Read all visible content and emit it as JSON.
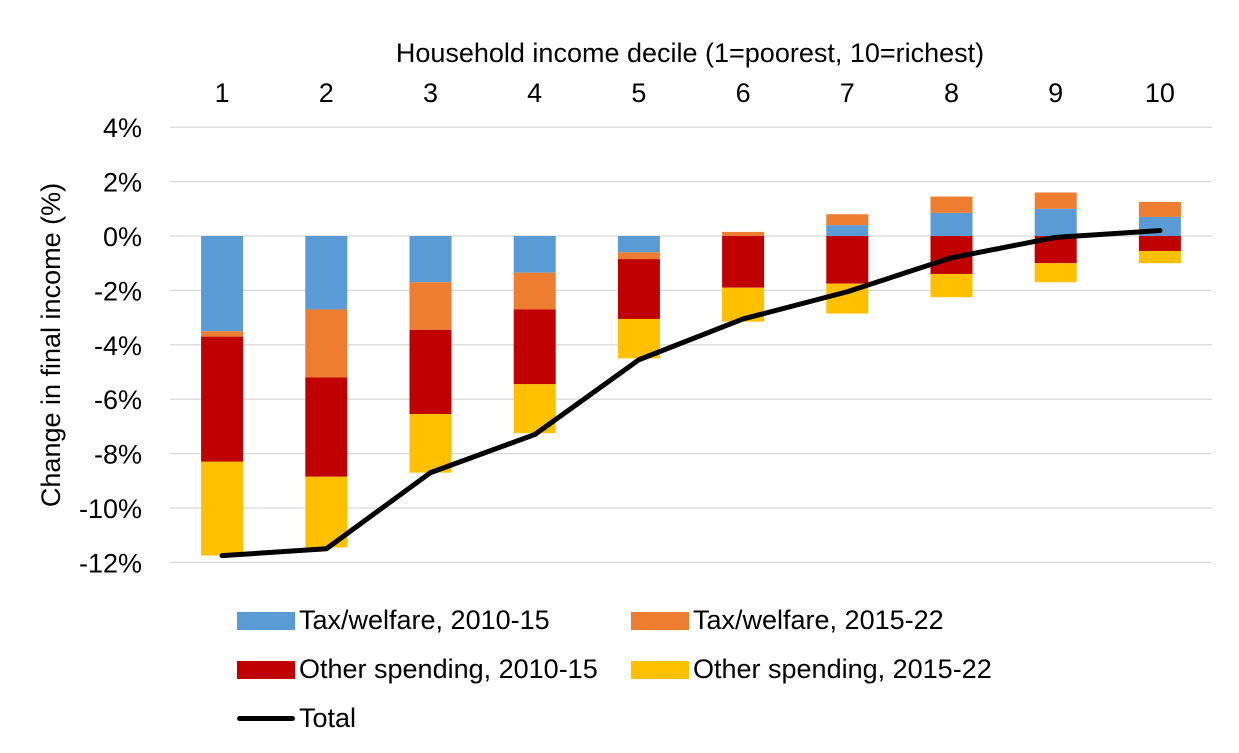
{
  "chart_data": {
    "type": "bar",
    "stacked": true,
    "title": "",
    "xlabel": "Household income decile (1=poorest, 10=richest)",
    "ylabel": "Change in final income (%)",
    "xaxis_position": "top",
    "categories": [
      "1",
      "2",
      "3",
      "4",
      "5",
      "6",
      "7",
      "8",
      "9",
      "10"
    ],
    "ylim": [
      -12,
      4
    ],
    "yticks": [
      4,
      2,
      0,
      -2,
      -4,
      -6,
      -8,
      -10,
      -12
    ],
    "ytick_labels": [
      "4%",
      "2%",
      "0%",
      "-2%",
      "-4%",
      "-6%",
      "-8%",
      "-10%",
      "-12%"
    ],
    "grid": true,
    "legend_position": "bottom",
    "series": [
      {
        "name": "Tax/welfare, 2010-15",
        "color": "#5b9bd5",
        "values": [
          -3.5,
          -2.7,
          -1.7,
          -1.35,
          -0.6,
          0.0,
          0.4,
          0.85,
          1.0,
          0.7
        ]
      },
      {
        "name": "Tax/welfare, 2015-22",
        "color": "#ed7d31",
        "values": [
          -0.2,
          -2.5,
          -1.75,
          -1.35,
          -0.25,
          0.15,
          0.4,
          0.6,
          0.6,
          0.55
        ]
      },
      {
        "name": "Other spending, 2010-15",
        "color": "#c00000",
        "values": [
          -4.6,
          -3.65,
          -3.1,
          -2.75,
          -2.2,
          -1.9,
          -1.75,
          -1.4,
          -1.0,
          -0.55
        ]
      },
      {
        "name": "Other spending, 2015-22",
        "color": "#ffc000",
        "values": [
          -3.45,
          -2.6,
          -2.15,
          -1.8,
          -1.45,
          -1.25,
          -1.1,
          -0.85,
          -0.7,
          -0.45
        ]
      }
    ],
    "line_series": {
      "name": "Total",
      "color": "#000000",
      "values": [
        -11.75,
        -11.5,
        -8.7,
        -7.3,
        -4.55,
        -3.05,
        -2.05,
        -0.8,
        -0.05,
        0.2
      ]
    }
  }
}
